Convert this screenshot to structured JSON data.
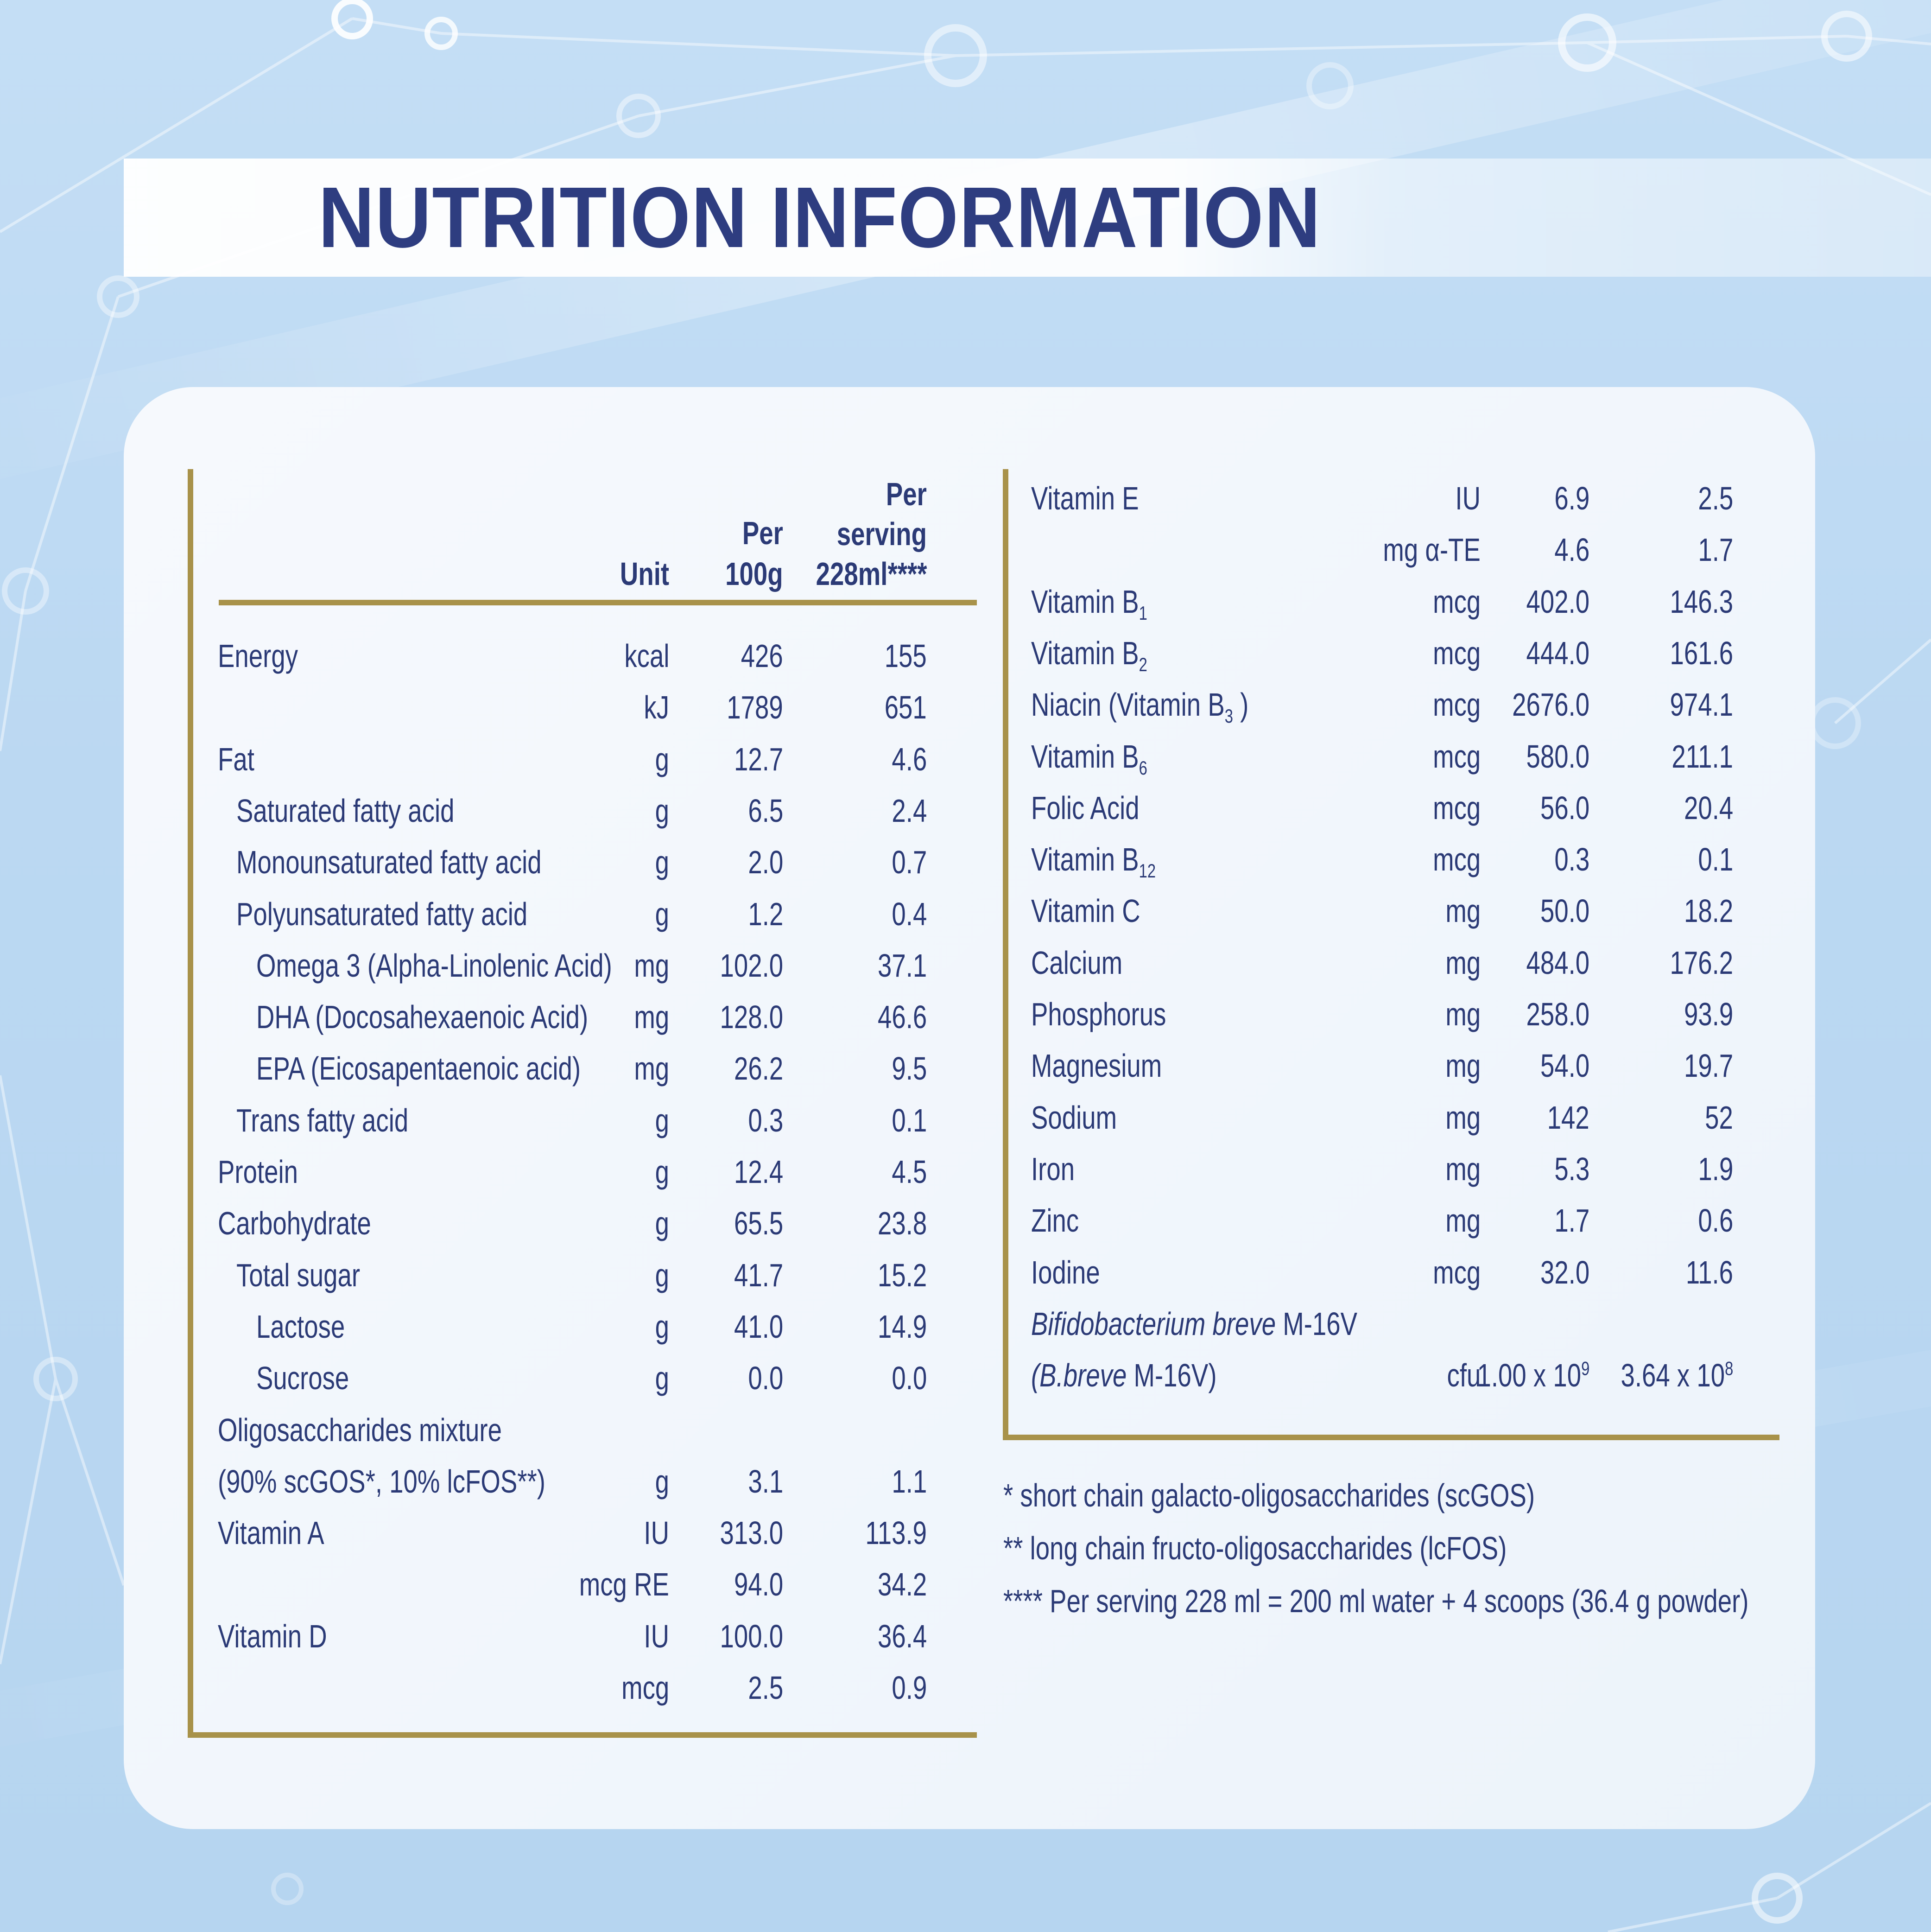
{
  "title": "NUTRITION INFORMATION",
  "colors": {
    "background_blue": "#BCD9F2",
    "card_white": "#F2F7FD",
    "text_navy": "#2B3A76",
    "title_navy": "#2E3D80",
    "rule_gold": "#A8924A"
  },
  "table": {
    "headers": {
      "unit": "Unit",
      "per100g": [
        "Per",
        "100g"
      ],
      "serving": [
        "Per",
        "serving",
        "228ml****"
      ]
    },
    "left_rows": [
      {
        "label": "Energy",
        "indent": 0,
        "unit": "kcal",
        "per100g": "426",
        "serving": "155"
      },
      {
        "label": "",
        "indent": 0,
        "unit": "kJ",
        "per100g": "1789",
        "serving": "651"
      },
      {
        "label": "Fat",
        "indent": 0,
        "unit": "g",
        "per100g": "12.7",
        "serving": "4.6"
      },
      {
        "label": "Saturated fatty acid",
        "indent": 1,
        "unit": "g",
        "per100g": "6.5",
        "serving": "2.4"
      },
      {
        "label": "Monounsaturated fatty acid",
        "indent": 1,
        "unit": "g",
        "per100g": "2.0",
        "serving": "0.7"
      },
      {
        "label": "Polyunsaturated fatty acid",
        "indent": 1,
        "unit": "g",
        "per100g": "1.2",
        "serving": "0.4"
      },
      {
        "label": "Omega 3 (Alpha-Linolenic Acid)",
        "indent": 2,
        "unit": "mg",
        "per100g": "102.0",
        "serving": "37.1"
      },
      {
        "label": "DHA (Docosahexaenoic Acid)",
        "indent": 2,
        "unit": "mg",
        "per100g": "128.0",
        "serving": "46.6"
      },
      {
        "label": "EPA (Eicosapentaenoic acid)",
        "indent": 2,
        "unit": "mg",
        "per100g": "26.2",
        "serving": "9.5"
      },
      {
        "label": "Trans fatty acid",
        "indent": 1,
        "unit": "g",
        "per100g": "0.3",
        "serving": "0.1"
      },
      {
        "label": "Protein",
        "indent": 0,
        "unit": "g",
        "per100g": "12.4",
        "serving": "4.5"
      },
      {
        "label": "Carbohydrate",
        "indent": 0,
        "unit": "g",
        "per100g": "65.5",
        "serving": "23.8"
      },
      {
        "label": "Total sugar",
        "indent": 1,
        "unit": "g",
        "per100g": "41.7",
        "serving": "15.2"
      },
      {
        "label": "Lactose",
        "indent": 2,
        "unit": "g",
        "per100g": "41.0",
        "serving": "14.9"
      },
      {
        "label": "Sucrose",
        "indent": 2,
        "unit": "g",
        "per100g": "0.0",
        "serving": "0.0"
      },
      {
        "label": "Oligosaccharides mixture",
        "indent": 0
      },
      {
        "label": "(90% scGOS*, 10% lcFOS**)",
        "indent": 0,
        "unit": "g",
        "per100g": "3.1",
        "serving": "1.1"
      },
      {
        "label": "Vitamin A",
        "indent": 0,
        "unit": "IU",
        "per100g": "313.0",
        "serving": "113.9"
      },
      {
        "label": "",
        "indent": 0,
        "unit": "mcg RE",
        "per100g": "94.0",
        "serving": "34.2"
      },
      {
        "label": "Vitamin D",
        "indent": 0,
        "unit": "IU",
        "per100g": "100.0",
        "serving": "36.4"
      },
      {
        "label": "",
        "indent": 0,
        "unit": "mcg",
        "per100g": "2.5",
        "serving": "0.9"
      }
    ],
    "right_rows": [
      {
        "label": "Vitamin E",
        "indent": 0,
        "unit": "IU",
        "per100g": "6.9",
        "serving": "2.5"
      },
      {
        "label": "",
        "indent": 0,
        "unit": "mg α-TE",
        "per100g": "4.6",
        "serving": "1.7"
      },
      {
        "label": "Vitamin B",
        "label_sub": "1",
        "indent": 0,
        "unit": "mcg",
        "per100g": "402.0",
        "serving": "146.3"
      },
      {
        "label": "Vitamin B",
        "label_sub": "2",
        "indent": 0,
        "unit": "mcg",
        "per100g": "444.0",
        "serving": "161.6"
      },
      {
        "label": "Niacin (Vitamin B",
        "label_sub": "3",
        "label_rest": " )",
        "indent": 0,
        "unit": "mcg",
        "per100g": "2676.0",
        "serving": "974.1"
      },
      {
        "label": "Vitamin B",
        "label_sub": "6",
        "indent": 0,
        "unit": "mcg",
        "per100g": "580.0",
        "serving": "211.1"
      },
      {
        "label": "Folic Acid",
        "indent": 0,
        "unit": "mcg",
        "per100g": "56.0",
        "serving": "20.4"
      },
      {
        "label": "Vitamin B",
        "label_sub": "12",
        "indent": 0,
        "unit": "mcg",
        "per100g": "0.3",
        "serving": "0.1"
      },
      {
        "label": "Vitamin C",
        "indent": 0,
        "unit": "mg",
        "per100g": "50.0",
        "serving": "18.2"
      },
      {
        "label": "Calcium",
        "indent": 0,
        "unit": "mg",
        "per100g": "484.0",
        "serving": "176.2"
      },
      {
        "label": "Phosphorus",
        "indent": 0,
        "unit": "mg",
        "per100g": "258.0",
        "serving": "93.9"
      },
      {
        "label": "Magnesium",
        "indent": 0,
        "unit": "mg",
        "per100g": "54.0",
        "serving": "19.7"
      },
      {
        "label": "Sodium",
        "indent": 0,
        "unit": "mg",
        "per100g": "142",
        "serving": "52"
      },
      {
        "label": "Iron",
        "indent": 0,
        "unit": "mg",
        "per100g": "5.3",
        "serving": "1.9"
      },
      {
        "label": "Zinc",
        "indent": 0,
        "unit": "mg",
        "per100g": "1.7",
        "serving": "0.6"
      },
      {
        "label": "Iodine",
        "indent": 0,
        "unit": "mcg",
        "per100g": "32.0",
        "serving": "11.6"
      },
      {
        "label_italic": "Bifidobacterium breve",
        "label_rest": " M-16V",
        "indent": 0
      },
      {
        "label_italic": "(B.breve",
        "label_rest": " M-16V)",
        "indent": 0,
        "unit": "cfu",
        "per100g": "1.00 x 10",
        "per100g_sup": "9",
        "serving": "3.64 x 10",
        "serving_sup": "8"
      }
    ]
  },
  "footnotes": [
    "* short chain galacto-oligosaccharides (scGOS)",
    "** long chain fructo-oligosaccharides (lcFOS)",
    "**** Per serving 228 ml = 200 ml water + 4 scoops (36.4 g powder)"
  ]
}
